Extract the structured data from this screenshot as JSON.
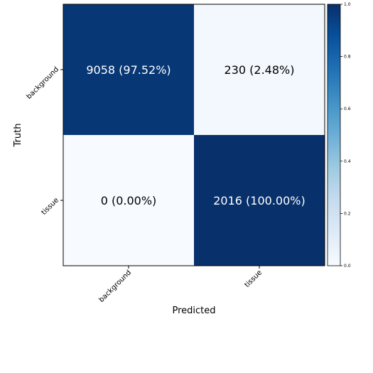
{
  "chart_data": {
    "type": "heatmap",
    "title": "",
    "xlabel": "Predicted",
    "ylabel": "Truth",
    "x_categories": [
      "background",
      "tissue"
    ],
    "y_categories": [
      "background",
      "tissue"
    ],
    "values": [
      [
        0.9752,
        0.0248
      ],
      [
        0.0,
        1.0
      ]
    ],
    "cell_labels": [
      [
        "9058 (97.52%)",
        "230 (2.48%)"
      ],
      [
        "0 (0.00%)",
        "2016 (100.00%)"
      ]
    ],
    "colorbar": {
      "range": [
        0.0,
        1.0
      ],
      "ticks": [
        "0.0",
        "0.2",
        "0.4",
        "0.6",
        "0.8",
        "1.0"
      ],
      "colormap": "Blues"
    },
    "colors": {
      "low": "#f7fbff",
      "high": "#08306b"
    }
  }
}
